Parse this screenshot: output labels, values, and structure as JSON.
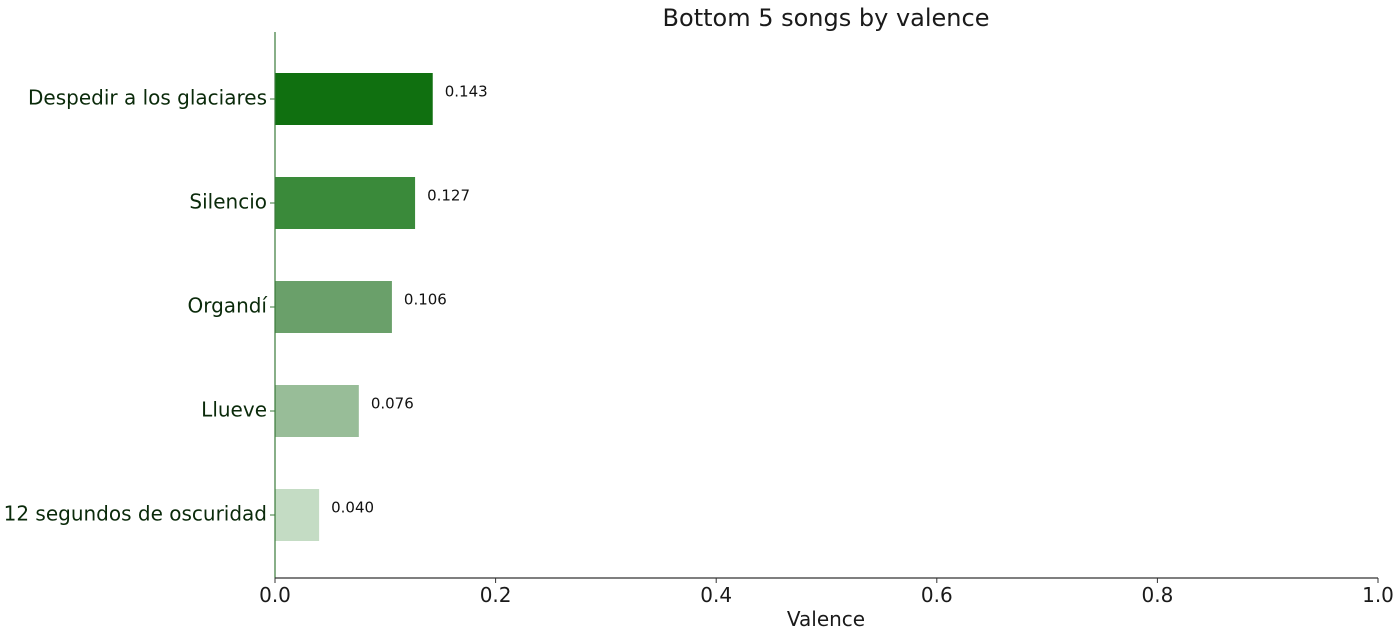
{
  "chart_data": {
    "type": "bar",
    "orientation": "horizontal",
    "title": "Bottom 5 songs by valence",
    "xlabel": "Valence",
    "ylabel": "",
    "xlim": [
      0,
      1.0
    ],
    "x_ticks": [
      "0.0",
      "0.2",
      "0.4",
      "0.6",
      "0.8",
      "1.0"
    ],
    "x_tick_values": [
      0,
      0.2,
      0.4,
      0.6,
      0.8,
      1.0
    ],
    "grid": false,
    "categories": [
      "Despedir a los glaciares",
      "Silencio",
      "Organdí",
      "Llueve",
      "12 segundos de oscuridad"
    ],
    "values": [
      0.143,
      0.127,
      0.106,
      0.076,
      0.04
    ],
    "value_labels": [
      "0.143",
      "0.127",
      "0.106",
      "0.076",
      "0.040"
    ],
    "colors": [
      "#107010",
      "#3a8a3a",
      "#6aa06a",
      "#98bd98",
      "#c4dcc4"
    ],
    "axis_color": "#3a7a3a"
  }
}
